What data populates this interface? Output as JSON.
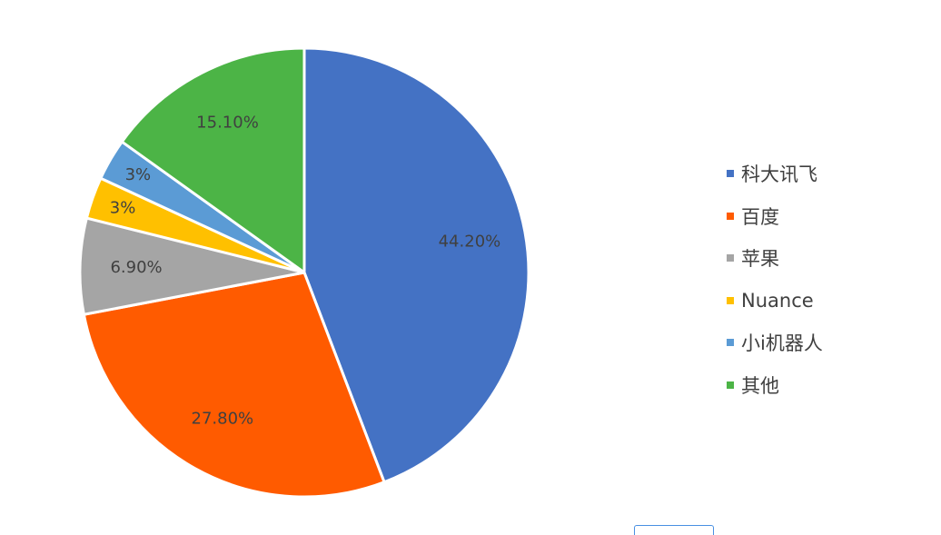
{
  "chart_data": {
    "type": "pie",
    "start_angle_deg": 0,
    "direction": "clockwise",
    "legend_position": "right",
    "slices": [
      {
        "name": "科大讯飞",
        "value": 44.2,
        "label": "44.20%",
        "color": "#4472C4"
      },
      {
        "name": "百度",
        "value": 27.8,
        "label": "27.80%",
        "color": "#FF5B00"
      },
      {
        "name": "苹果",
        "value": 6.9,
        "label": "6.90%",
        "color": "#A5A5A5"
      },
      {
        "name": "Nuance",
        "value": 3,
        "label": "3%",
        "color": "#FFC000"
      },
      {
        "name": "小i机器人",
        "value": 3,
        "label": "3%",
        "color": "#5B9BD5"
      },
      {
        "name": "其他",
        "value": 15.1,
        "label": "15.10%",
        "color": "#4CB446"
      }
    ]
  }
}
